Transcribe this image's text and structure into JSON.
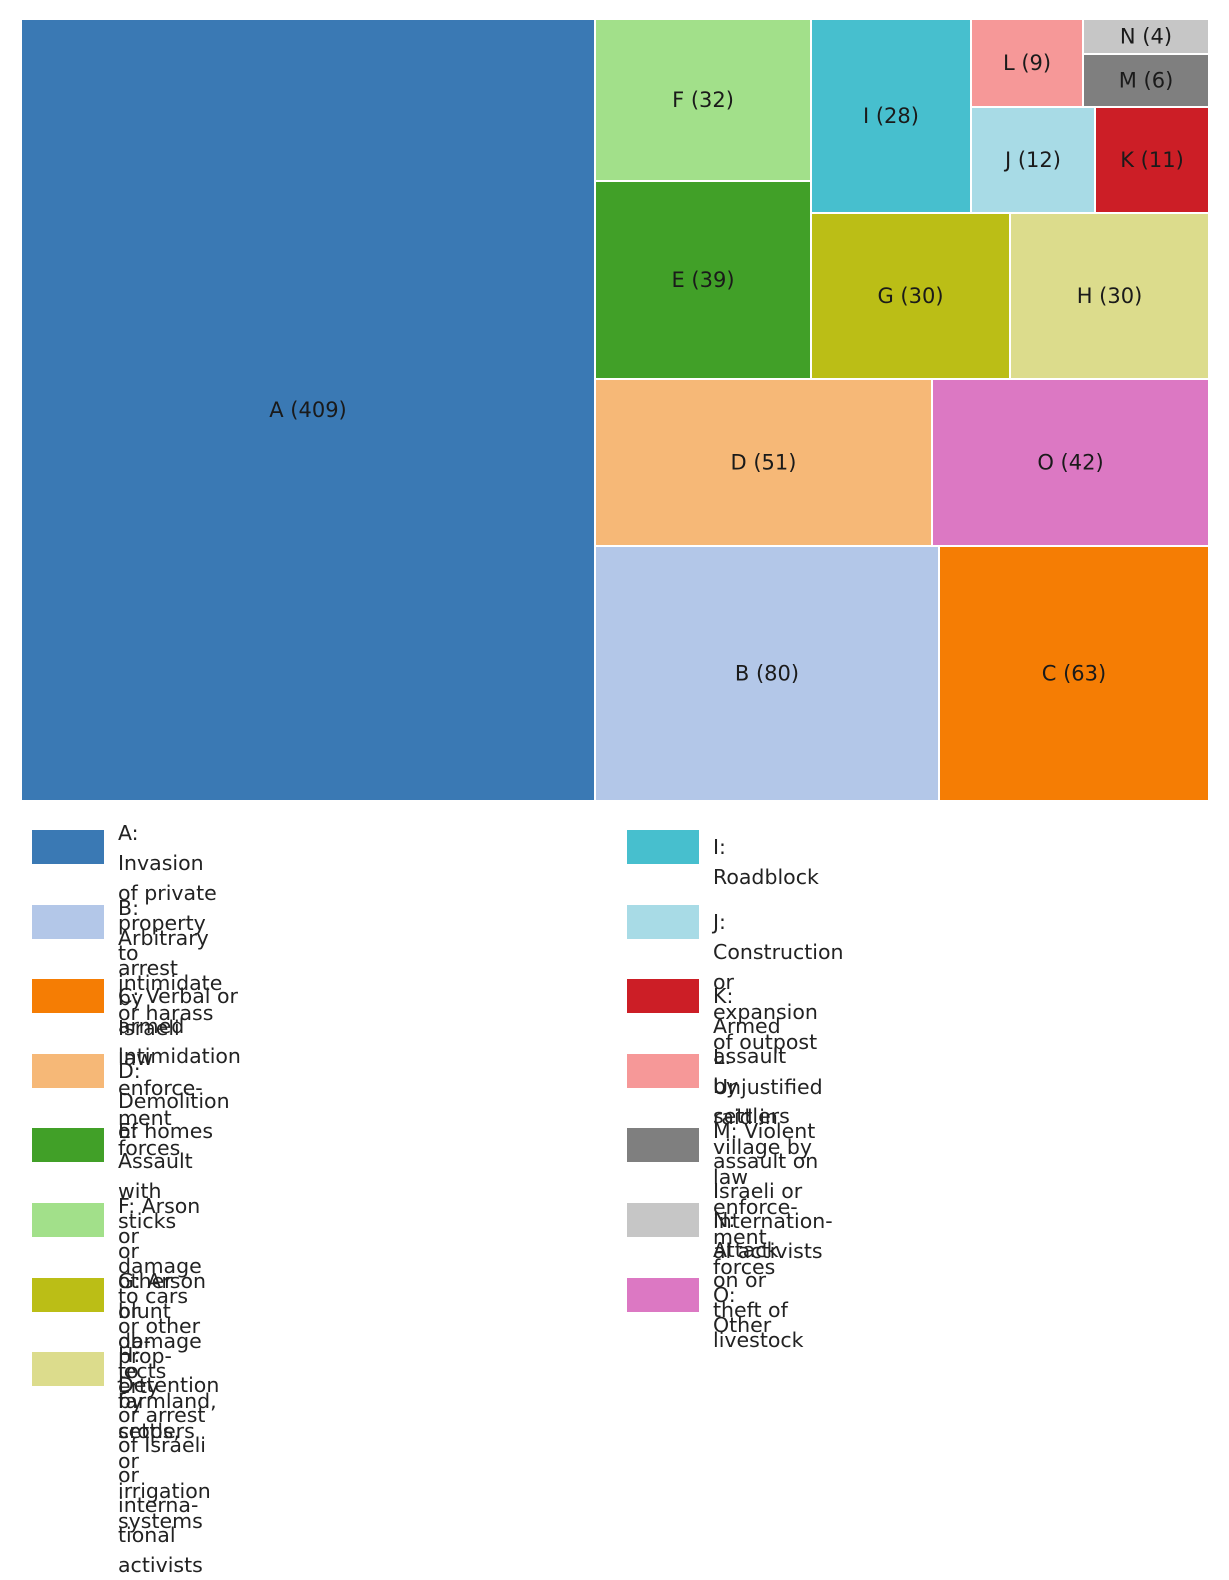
{
  "chart_data": {
    "type": "treemap",
    "items": [
      {
        "key": "A",
        "label": "A (409)",
        "value": 409,
        "color": "#3a79b4",
        "legend": [
          "A: Invasion of private property to intimidate",
          "or harass"
        ]
      },
      {
        "key": "B",
        "label": "B (80)",
        "value": 80,
        "color": "#b3c7e8",
        "legend": [
          "B: Arbitrary arrest by Israeli law enforce-",
          "ment forces"
        ]
      },
      {
        "key": "C",
        "label": "C (63)",
        "value": 63,
        "color": "#f57d04",
        "legend": [
          "C: Verbal or armed intimidation"
        ]
      },
      {
        "key": "D",
        "label": "D (51)",
        "value": 51,
        "color": "#f6b877",
        "legend": [
          "D: Demolition of homes"
        ]
      },
      {
        "key": "E",
        "label": "E (39)",
        "value": 39,
        "color": "#41a028",
        "legend": [
          "E: Assault with sticks or other blunt ob-",
          "jects by settlers"
        ]
      },
      {
        "key": "F",
        "label": "F (32)",
        "value": 32,
        "color": "#a2e08a",
        "legend": [
          "F: Arson or damage to cars or other prop-",
          "erty"
        ]
      },
      {
        "key": "G",
        "label": "G (30)",
        "value": 30,
        "color": "#bbbe16",
        "legend": [
          "G: Arson or damage to farmland, crops,",
          "or irrigation systems"
        ]
      },
      {
        "key": "H",
        "label": "H (30)",
        "value": 30,
        "color": "#dcdc8c",
        "legend": [
          "H: Detention or arrest of Israeli or interna-",
          "tional activists"
        ]
      },
      {
        "key": "I",
        "label": "I (28)",
        "value": 28,
        "color": "#47bfce",
        "legend": [
          "I: Roadblock"
        ]
      },
      {
        "key": "J",
        "label": "J (12)",
        "value": 12,
        "color": "#a8dbe6",
        "legend": [
          "J: Construction or expansion of outpost"
        ]
      },
      {
        "key": "K",
        "label": "K (11)",
        "value": 11,
        "color": "#cc1e26",
        "legend": [
          "K: Armed assault by settlers"
        ]
      },
      {
        "key": "L",
        "label": "L (9)",
        "value": 9,
        "color": "#f69898",
        "legend": [
          "L: Unjustified raid in village by law enforce-",
          "ment forces"
        ]
      },
      {
        "key": "M",
        "label": "M (6)",
        "value": 6,
        "color": "#7f7f7f",
        "legend": [
          "M: Violent assault on Israeli or internation-",
          "al activists"
        ]
      },
      {
        "key": "N",
        "label": "N (4)",
        "value": 4,
        "color": "#c6c6c6",
        "legend": [
          "N: Attack on or theft of livestock"
        ]
      },
      {
        "key": "O",
        "label": "O (42)",
        "value": 42,
        "color": "#dc78c3",
        "legend": [
          "O: Other"
        ]
      }
    ],
    "legend_columns": [
      [
        "A",
        "B",
        "C",
        "D",
        "E",
        "F",
        "G",
        "H"
      ],
      [
        "I",
        "J",
        "K",
        "L",
        "M",
        "N",
        "O"
      ]
    ]
  }
}
